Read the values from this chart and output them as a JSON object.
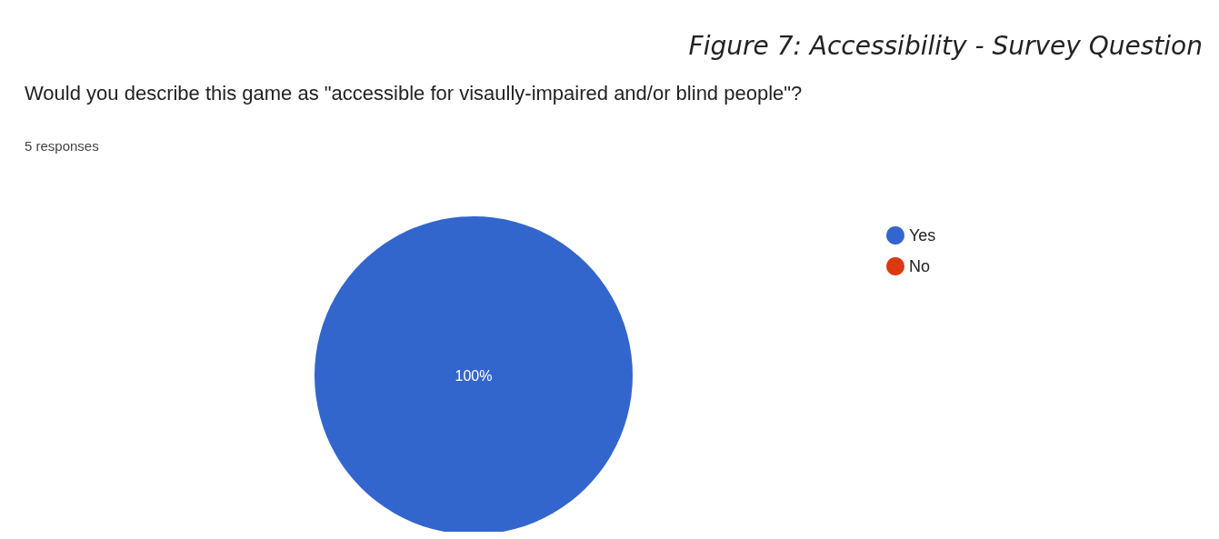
{
  "chart_data": {
    "type": "pie",
    "title": "Would you describe this game as \"accessible for visaully-impaired and/or blind people\"?",
    "subtitle": "5 responses",
    "annotations": [
      "Figure 7: Accessibility - Survey Question"
    ],
    "categories": [
      "Yes",
      "No"
    ],
    "values": [
      100,
      0
    ],
    "colors": [
      "#3366cc",
      "#dc3912"
    ],
    "value_labels": [
      "100%",
      null
    ],
    "legend": "right"
  }
}
